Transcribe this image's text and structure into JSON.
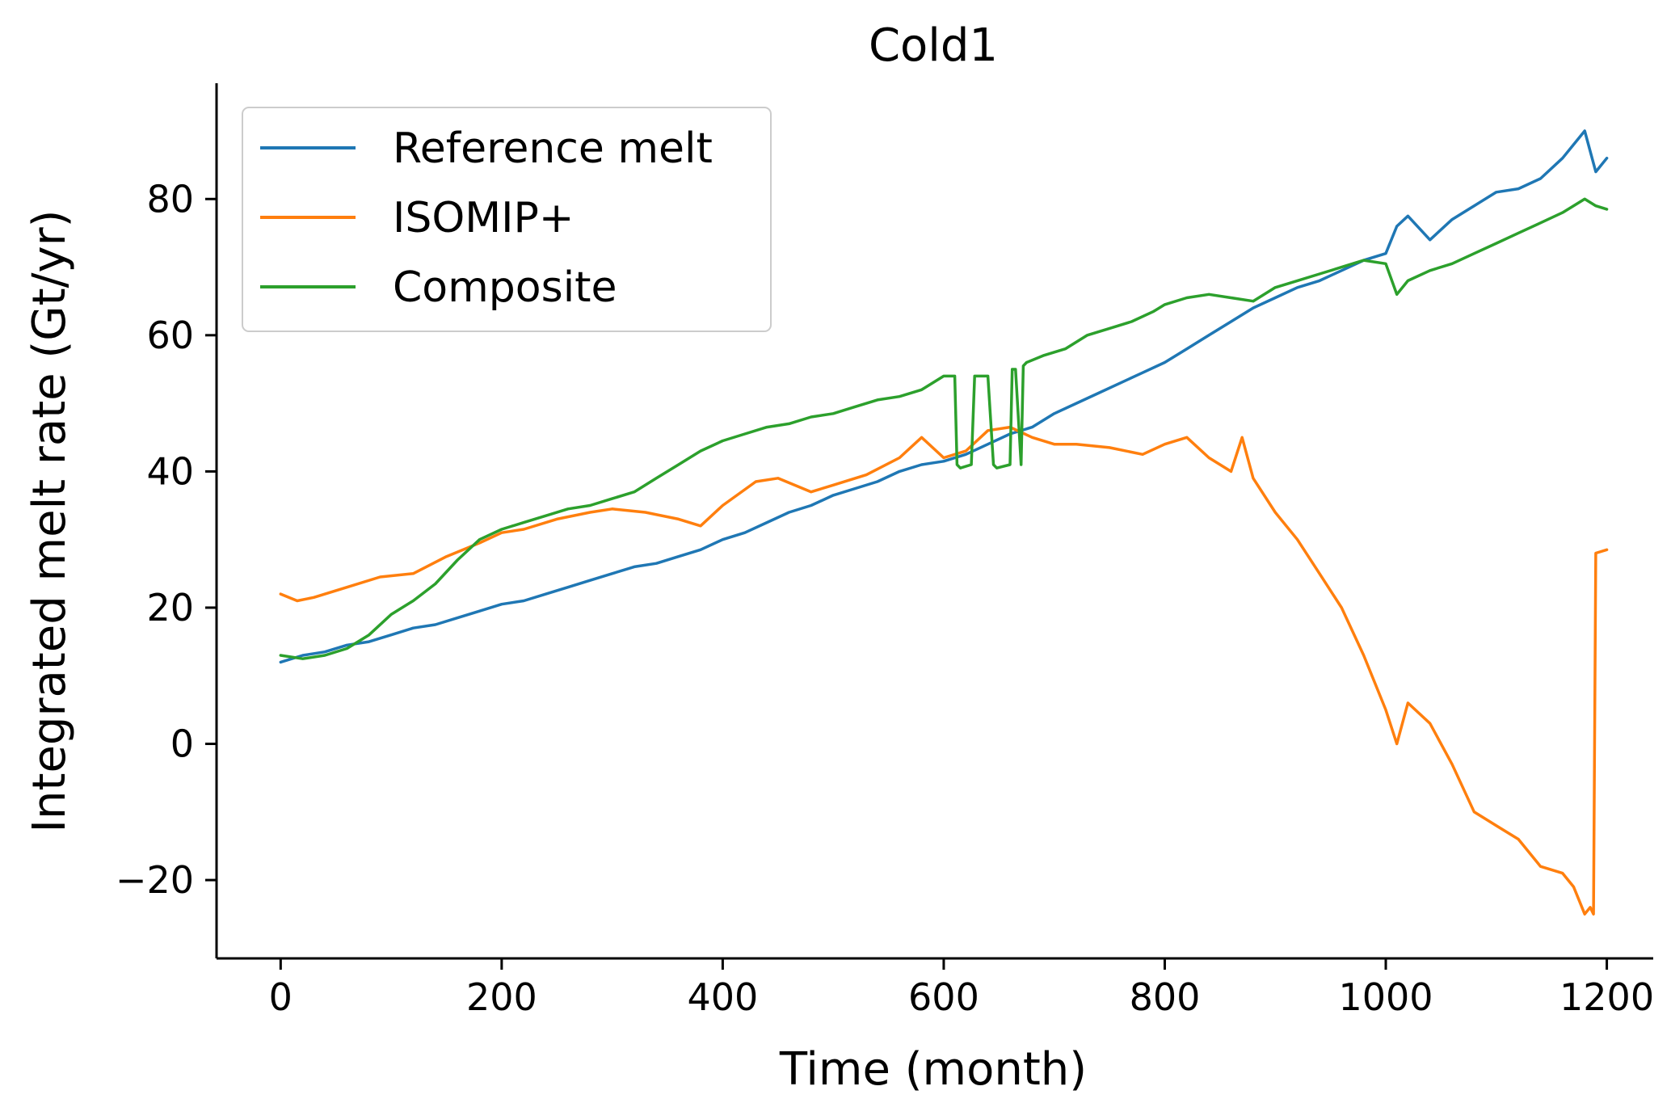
{
  "chart_data": {
    "type": "line",
    "title": "Cold1",
    "xlabel": "Time (month)",
    "ylabel": "Integrated melt rate (Gt/yr)",
    "xlim": [
      -58,
      1242
    ],
    "ylim": [
      -31.5,
      97
    ],
    "xticks": [
      0,
      200,
      400,
      600,
      800,
      1000,
      1200
    ],
    "xtick_labels": [
      "0",
      "200",
      "400",
      "600",
      "800",
      "1000",
      "1200"
    ],
    "yticks": [
      -20,
      0,
      20,
      40,
      60,
      80
    ],
    "ytick_labels": [
      "−20",
      "0",
      "20",
      "40",
      "60",
      "80"
    ],
    "grid": false,
    "legend_position": "top-left",
    "series": [
      {
        "name": "Reference melt",
        "color": "#1f77b4",
        "x": [
          0,
          20,
          40,
          60,
          80,
          100,
          120,
          140,
          160,
          180,
          200,
          220,
          240,
          260,
          280,
          300,
          320,
          340,
          360,
          380,
          400,
          420,
          440,
          460,
          480,
          500,
          520,
          540,
          560,
          580,
          600,
          620,
          640,
          660,
          680,
          700,
          720,
          740,
          760,
          780,
          800,
          820,
          840,
          860,
          880,
          900,
          920,
          940,
          960,
          980,
          1000,
          1010,
          1020,
          1040,
          1060,
          1080,
          1100,
          1120,
          1140,
          1160,
          1180,
          1190,
          1200
        ],
        "y": [
          12,
          13,
          13.5,
          14.5,
          15,
          16,
          17,
          17.5,
          18.5,
          19.5,
          20.5,
          21,
          22,
          23,
          24,
          25,
          26,
          26.5,
          27.5,
          28.5,
          30,
          31,
          32.5,
          34,
          35,
          36.5,
          37.5,
          38.5,
          40,
          41,
          41.5,
          42.5,
          44,
          45.5,
          46.5,
          48.5,
          50,
          51.5,
          53,
          54.5,
          56,
          58,
          60,
          62,
          64,
          65.5,
          67,
          68,
          69.5,
          71,
          72,
          76,
          77.5,
          74,
          77,
          79,
          81,
          81.5,
          83,
          86,
          90,
          84,
          86
        ]
      },
      {
        "name": "ISOMIP+",
        "color": "#ff7f0e",
        "x": [
          0,
          15,
          30,
          60,
          90,
          120,
          150,
          180,
          200,
          220,
          250,
          280,
          300,
          330,
          360,
          380,
          400,
          430,
          450,
          480,
          500,
          530,
          560,
          580,
          600,
          620,
          640,
          660,
          680,
          700,
          720,
          750,
          780,
          800,
          820,
          840,
          860,
          870,
          880,
          900,
          920,
          940,
          960,
          980,
          1000,
          1010,
          1020,
          1040,
          1060,
          1080,
          1100,
          1120,
          1140,
          1160,
          1170,
          1180,
          1185,
          1188,
          1190,
          1200
        ],
        "y": [
          22,
          21,
          21.5,
          23,
          24.5,
          25,
          27.5,
          29.5,
          31,
          31.5,
          33,
          34,
          34.5,
          34,
          33,
          32,
          35,
          38.5,
          39,
          37,
          38,
          39.5,
          42,
          45,
          42,
          43,
          46,
          46.5,
          45,
          44,
          44,
          43.5,
          42.5,
          44,
          45,
          42,
          40,
          45,
          39,
          34,
          30,
          25,
          20,
          13,
          5,
          0,
          6,
          3,
          -3,
          -10,
          -12,
          -14,
          -18,
          -19,
          -21,
          -25,
          -24,
          -25,
          28,
          28.5
        ]
      },
      {
        "name": "Composite",
        "color": "#2ca02c",
        "x": [
          0,
          20,
          40,
          60,
          80,
          100,
          120,
          140,
          160,
          180,
          200,
          220,
          240,
          260,
          280,
          300,
          320,
          340,
          360,
          380,
          400,
          420,
          440,
          460,
          480,
          500,
          520,
          540,
          560,
          580,
          600,
          610,
          612,
          615,
          625,
          628,
          640,
          645,
          648,
          660,
          662,
          665,
          670,
          672,
          675,
          690,
          710,
          730,
          750,
          770,
          790,
          800,
          820,
          840,
          860,
          880,
          900,
          920,
          940,
          960,
          980,
          1000,
          1010,
          1020,
          1040,
          1060,
          1080,
          1100,
          1120,
          1140,
          1160,
          1180,
          1190,
          1200
        ],
        "y": [
          13,
          12.5,
          13,
          14,
          16,
          19,
          21,
          23.5,
          27,
          30,
          31.5,
          32.5,
          33.5,
          34.5,
          35,
          36,
          37,
          39,
          41,
          43,
          44.5,
          45.5,
          46.5,
          47,
          48,
          48.5,
          49.5,
          50.5,
          51,
          52,
          54,
          54,
          41,
          40.5,
          41,
          54,
          54,
          41,
          40.5,
          41,
          55,
          55,
          41,
          55.5,
          56,
          57,
          58,
          60,
          61,
          62,
          63.5,
          64.5,
          65.5,
          66,
          65.5,
          65,
          67,
          68,
          69,
          70,
          71,
          70.5,
          66,
          68,
          69.5,
          70.5,
          72,
          73.5,
          75,
          76.5,
          78,
          80,
          79,
          78.5
        ]
      }
    ]
  }
}
